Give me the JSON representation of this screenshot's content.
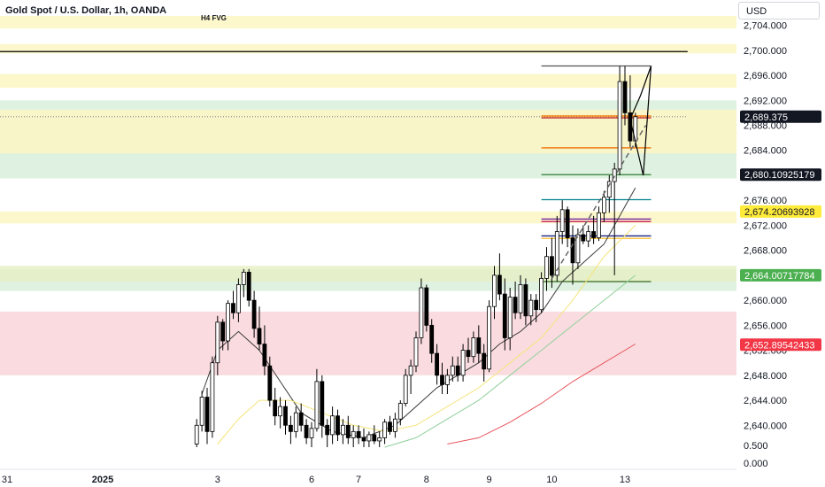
{
  "header": {
    "title": "Gold Spot / U.S. Dollar, 1h, OANDA",
    "fvg_label": "H4 FVG",
    "currency_button": "USD"
  },
  "colors": {
    "up_candle": "#ffffff",
    "down_candle": "#000000",
    "wick": "#000000",
    "zone_yellow": "#fdf6c3",
    "zone_green": "#d9eedb",
    "zone_lime": "#e6f0c5",
    "zone_red": "#f9d6da",
    "ma_black": "#3a3a3a",
    "ma_yellow": "#f5e47a",
    "ma_green": "#8fcf9a",
    "ma_red": "#e8555d",
    "tag_black": "#131722",
    "tag_yellow": "#ffeb3b",
    "tag_green": "#4caf50",
    "tag_red": "#f23645"
  },
  "chart_data": {
    "type": "candlestick",
    "symbol": "Gold Spot / U.S. Dollar",
    "interval": "1h",
    "currency": "USD",
    "ylim": [
      2636.5,
      2705.5
    ],
    "y_ticks": [
      2704,
      2700,
      2696,
      2692,
      2688,
      2684,
      2676,
      2672,
      2668,
      2664,
      2660,
      2656,
      2652,
      2648,
      2644,
      2640
    ],
    "x_ticks": [
      {
        "label": "31",
        "bar": -24
      },
      {
        "label": "2025",
        "bar": 0
      },
      {
        "label": "3",
        "bar": 22
      },
      {
        "label": "6",
        "bar": 40
      },
      {
        "label": "7",
        "bar": 49
      },
      {
        "label": "8",
        "bar": 62
      },
      {
        "label": "9",
        "bar": 74
      },
      {
        "label": "10",
        "bar": 86
      },
      {
        "label": "13",
        "bar": 100
      }
    ],
    "bottom_pane_ticks": [
      "0.500",
      "0.000"
    ],
    "price_tags": [
      {
        "label": "2,689.375",
        "value": 2689.375,
        "style": "black"
      },
      {
        "label": "2,680.10925179",
        "value": 2680.109,
        "style": "black"
      },
      {
        "label": "2,674.20693928",
        "value": 2674.207,
        "style": "yellow"
      },
      {
        "label": "2,664.00717784",
        "value": 2664.007,
        "style": "green"
      },
      {
        "label": "2,652.89542433",
        "value": 2652.895,
        "style": "red"
      }
    ],
    "zones": [
      {
        "from": 2703.5,
        "to": 2705.5,
        "color": "yellow"
      },
      {
        "from": 2699.5,
        "to": 2701.0,
        "color": "yellow"
      },
      {
        "from": 2694.0,
        "to": 2696.2,
        "color": "yellow"
      },
      {
        "from": 2679.5,
        "to": 2692.0,
        "color": "green"
      },
      {
        "from": 2683.5,
        "to": 2690.5,
        "color": "yellow"
      },
      {
        "from": 2672.3,
        "to": 2674.2,
        "color": "yellow"
      },
      {
        "from": 2661.5,
        "to": 2665.0,
        "color": "green"
      },
      {
        "from": 2663.0,
        "to": 2665.5,
        "color": "lime"
      },
      {
        "from": 2648.0,
        "to": 2658.2,
        "color": "red"
      }
    ],
    "levels": [
      {
        "value": 2699.8,
        "color": "#000000",
        "from_bar": -30,
        "to_bar": 112
      },
      {
        "value": 2689.375,
        "color": "#787b86",
        "from_bar": -30,
        "to_bar": 112,
        "dashed": true
      },
      {
        "value": 2697.5,
        "color": "#555555",
        "from_bar": 84,
        "to_bar": 105
      },
      {
        "value": 2689.5,
        "color": "#f57c00",
        "from_bar": 84,
        "to_bar": 105
      },
      {
        "value": 2689.2,
        "color": "#c62828",
        "from_bar": 84,
        "to_bar": 105
      },
      {
        "value": 2684.4,
        "color": "#ef6c00",
        "from_bar": 84,
        "to_bar": 105
      },
      {
        "value": 2680.1,
        "color": "#2e7d32",
        "from_bar": 84,
        "to_bar": 105
      },
      {
        "value": 2676.1,
        "color": "#00838f",
        "from_bar": 84,
        "to_bar": 105
      },
      {
        "value": 2673.0,
        "color": "#6a1b9a",
        "from_bar": 84,
        "to_bar": 105
      },
      {
        "value": 2672.6,
        "color": "#c2185b",
        "from_bar": 84,
        "to_bar": 105
      },
      {
        "value": 2670.3,
        "color": "#1a237e",
        "from_bar": 84,
        "to_bar": 105
      },
      {
        "value": 2669.9,
        "color": "#fbc02d",
        "from_bar": 84,
        "to_bar": 105
      },
      {
        "value": 2663.0,
        "color": "#33691e",
        "from_bar": 84,
        "to_bar": 105
      }
    ],
    "projection": [
      {
        "bar": 101,
        "value": 2689.0
      },
      {
        "bar": 103,
        "value": 2692.8
      },
      {
        "bar": 105,
        "value": 2697.5
      },
      {
        "bar": 103.5,
        "value": 2680.0
      },
      {
        "bar": 101,
        "value": 2689.0
      }
    ],
    "trend_dashed": [
      {
        "bar": 86,
        "value": 2663.5
      },
      {
        "bar": 104,
        "value": 2688.0
      }
    ],
    "candles": [
      [
        18,
        2637.0,
        2641.0,
        2636.5,
        2640.0
      ],
      [
        19,
        2640.0,
        2645.5,
        2639.0,
        2644.5
      ],
      [
        20,
        2644.5,
        2646.0,
        2637.0,
        2639.0
      ],
      [
        21,
        2639.0,
        2651.0,
        2638.0,
        2650.0
      ],
      [
        22,
        2650.0,
        2657.5,
        2648.0,
        2656.5
      ],
      [
        23,
        2656.5,
        2657.0,
        2652.0,
        2653.5
      ],
      [
        24,
        2653.5,
        2660.0,
        2652.0,
        2659.5
      ],
      [
        25,
        2659.5,
        2661.5,
        2657.0,
        2658.0
      ],
      [
        26,
        2658.0,
        2663.5,
        2656.5,
        2662.5
      ],
      [
        27,
        2662.5,
        2665.0,
        2660.5,
        2664.5
      ],
      [
        28,
        2664.5,
        2665.0,
        2659.0,
        2660.0
      ],
      [
        29,
        2660.0,
        2661.5,
        2654.0,
        2655.5
      ],
      [
        30,
        2655.5,
        2659.0,
        2652.0,
        2653.0
      ],
      [
        31,
        2653.0,
        2656.0,
        2648.0,
        2649.5
      ],
      [
        32,
        2649.5,
        2651.0,
        2643.0,
        2644.0
      ],
      [
        33,
        2644.0,
        2646.0,
        2640.0,
        2641.5
      ],
      [
        34,
        2641.5,
        2644.5,
        2639.5,
        2643.0
      ],
      [
        35,
        2643.0,
        2644.0,
        2638.5,
        2640.0
      ],
      [
        36,
        2640.0,
        2641.5,
        2637.0,
        2639.0
      ],
      [
        37,
        2639.0,
        2643.0,
        2638.0,
        2642.0
      ],
      [
        38,
        2642.0,
        2643.5,
        2639.0,
        2640.0
      ],
      [
        39,
        2640.0,
        2641.0,
        2637.0,
        2638.0
      ],
      [
        40,
        2638.0,
        2640.5,
        2636.5,
        2639.5
      ],
      [
        41,
        2639.5,
        2649.0,
        2639.0,
        2647.0
      ],
      [
        42,
        2647.0,
        2648.0,
        2638.0,
        2640.0
      ],
      [
        43,
        2640.0,
        2641.0,
        2636.5,
        2638.5
      ],
      [
        44,
        2638.5,
        2643.0,
        2637.0,
        2641.5
      ],
      [
        45,
        2641.5,
        2642.5,
        2637.5,
        2638.5
      ],
      [
        46,
        2638.5,
        2641.0,
        2637.0,
        2640.0
      ],
      [
        47,
        2640.0,
        2641.5,
        2637.0,
        2638.0
      ],
      [
        48,
        2638.0,
        2640.0,
        2636.5,
        2639.0
      ],
      [
        49,
        2639.0,
        2640.0,
        2637.0,
        2638.0
      ],
      [
        50,
        2638.0,
        2639.5,
        2636.5,
        2637.5
      ],
      [
        51,
        2637.5,
        2639.0,
        2636.5,
        2638.5
      ],
      [
        52,
        2638.5,
        2640.0,
        2637.0,
        2637.5
      ],
      [
        53,
        2637.5,
        2639.0,
        2636.5,
        2638.0
      ],
      [
        54,
        2638.0,
        2641.0,
        2637.0,
        2640.5
      ],
      [
        55,
        2640.5,
        2641.5,
        2638.5,
        2639.0
      ],
      [
        56,
        2639.0,
        2642.0,
        2638.0,
        2641.0
      ],
      [
        57,
        2641.0,
        2644.0,
        2640.0,
        2643.5
      ],
      [
        58,
        2643.5,
        2649.0,
        2643.0,
        2648.0
      ],
      [
        59,
        2648.0,
        2650.5,
        2645.0,
        2649.5
      ],
      [
        60,
        2649.5,
        2655.0,
        2648.5,
        2654.0
      ],
      [
        61,
        2654.0,
        2663.5,
        2653.0,
        2662.0
      ],
      [
        62,
        2662.0,
        2662.5,
        2655.0,
        2656.0
      ],
      [
        63,
        2656.0,
        2657.0,
        2650.0,
        2651.5
      ],
      [
        64,
        2651.5,
        2653.0,
        2646.5,
        2648.0
      ],
      [
        65,
        2648.0,
        2650.0,
        2645.0,
        2646.5
      ],
      [
        66,
        2646.5,
        2649.0,
        2645.0,
        2648.0
      ],
      [
        67,
        2648.0,
        2651.0,
        2647.0,
        2649.5
      ],
      [
        68,
        2649.5,
        2651.0,
        2647.0,
        2648.0
      ],
      [
        69,
        2648.0,
        2653.0,
        2647.0,
        2652.0
      ],
      [
        70,
        2652.0,
        2654.0,
        2650.0,
        2651.0
      ],
      [
        71,
        2651.0,
        2655.0,
        2650.0,
        2654.0
      ],
      [
        72,
        2654.0,
        2656.0,
        2650.0,
        2651.5
      ],
      [
        73,
        2651.5,
        2653.0,
        2647.0,
        2649.0
      ],
      [
        74,
        2649.0,
        2660.0,
        2648.5,
        2659.0
      ],
      [
        75,
        2659.0,
        2665.5,
        2657.0,
        2664.0
      ],
      [
        76,
        2664.0,
        2667.5,
        2660.0,
        2661.0
      ],
      [
        77,
        2661.0,
        2663.5,
        2652.0,
        2654.0
      ],
      [
        78,
        2654.0,
        2662.0,
        2652.0,
        2660.5
      ],
      [
        79,
        2660.5,
        2663.0,
        2657.0,
        2658.0
      ],
      [
        80,
        2658.0,
        2664.0,
        2657.0,
        2662.5
      ],
      [
        81,
        2662.5,
        2663.5,
        2656.0,
        2657.5
      ],
      [
        82,
        2657.5,
        2661.0,
        2656.0,
        2660.0
      ],
      [
        83,
        2660.0,
        2661.0,
        2656.5,
        2658.5
      ],
      [
        84,
        2658.5,
        2664.5,
        2658.0,
        2663.5
      ],
      [
        85,
        2663.5,
        2668.5,
        2661.5,
        2667.0
      ],
      [
        86,
        2667.0,
        2670.0,
        2662.0,
        2664.0
      ],
      [
        87,
        2664.0,
        2673.5,
        2663.0,
        2671.0
      ],
      [
        88,
        2671.0,
        2676.0,
        2669.0,
        2674.5
      ],
      [
        89,
        2674.5,
        2675.0,
        2668.5,
        2670.0
      ],
      [
        90,
        2670.0,
        2672.0,
        2662.5,
        2666.0
      ],
      [
        91,
        2666.0,
        2671.5,
        2665.0,
        2670.5
      ],
      [
        92,
        2670.5,
        2672.0,
        2669.0,
        2669.5
      ],
      [
        93,
        2669.5,
        2672.0,
        2668.5,
        2671.0
      ],
      [
        94,
        2671.0,
        2673.5,
        2669.0,
        2670.0
      ],
      [
        95,
        2670.0,
        2675.0,
        2669.5,
        2674.0
      ],
      [
        96,
        2674.0,
        2677.5,
        2672.5,
        2676.5
      ],
      [
        97,
        2676.5,
        2680.0,
        2674.0,
        2679.0
      ],
      [
        98,
        2679.0,
        2682.0,
        2664.0,
        2681.0
      ],
      [
        99,
        2681.0,
        2697.5,
        2680.0,
        2695.0
      ],
      [
        100,
        2695.0,
        2697.5,
        2688.0,
        2690.0
      ],
      [
        101,
        2690.0,
        2696.0,
        2684.5,
        2685.5
      ],
      [
        102,
        2685.5,
        2690.0,
        2684.5,
        2689.375
      ]
    ],
    "moving_averages": [
      {
        "color": "black",
        "points": [
          [
            19,
            2645
          ],
          [
            22,
            2652
          ],
          [
            26,
            2655
          ],
          [
            30,
            2652
          ],
          [
            34,
            2647
          ],
          [
            38,
            2642
          ],
          [
            44,
            2639
          ],
          [
            50,
            2638
          ],
          [
            56,
            2640
          ],
          [
            60,
            2643
          ],
          [
            64,
            2646
          ],
          [
            68,
            2648
          ],
          [
            72,
            2650
          ],
          [
            76,
            2653
          ],
          [
            80,
            2655
          ],
          [
            84,
            2658
          ],
          [
            88,
            2663
          ],
          [
            92,
            2666
          ],
          [
            96,
            2669
          ],
          [
            100,
            2675
          ],
          [
            102,
            2678
          ]
        ]
      },
      {
        "color": "yellow",
        "points": [
          [
            22,
            2637
          ],
          [
            26,
            2641
          ],
          [
            30,
            2644
          ],
          [
            36,
            2644
          ],
          [
            42,
            2642
          ],
          [
            48,
            2640
          ],
          [
            54,
            2639
          ],
          [
            60,
            2640
          ],
          [
            66,
            2643
          ],
          [
            72,
            2646
          ],
          [
            78,
            2650
          ],
          [
            84,
            2654
          ],
          [
            90,
            2660
          ],
          [
            96,
            2667
          ],
          [
            102,
            2672
          ]
        ]
      },
      {
        "color": "green",
        "points": [
          [
            54,
            2636.5
          ],
          [
            60,
            2638
          ],
          [
            66,
            2641
          ],
          [
            72,
            2644
          ],
          [
            78,
            2648
          ],
          [
            84,
            2652
          ],
          [
            90,
            2656
          ],
          [
            96,
            2660
          ],
          [
            102,
            2664
          ]
        ]
      },
      {
        "color": "red",
        "points": [
          [
            66,
            2637
          ],
          [
            72,
            2638
          ],
          [
            78,
            2640.5
          ],
          [
            84,
            2643.5
          ],
          [
            90,
            2647
          ],
          [
            96,
            2650
          ],
          [
            102,
            2653
          ]
        ]
      }
    ]
  }
}
